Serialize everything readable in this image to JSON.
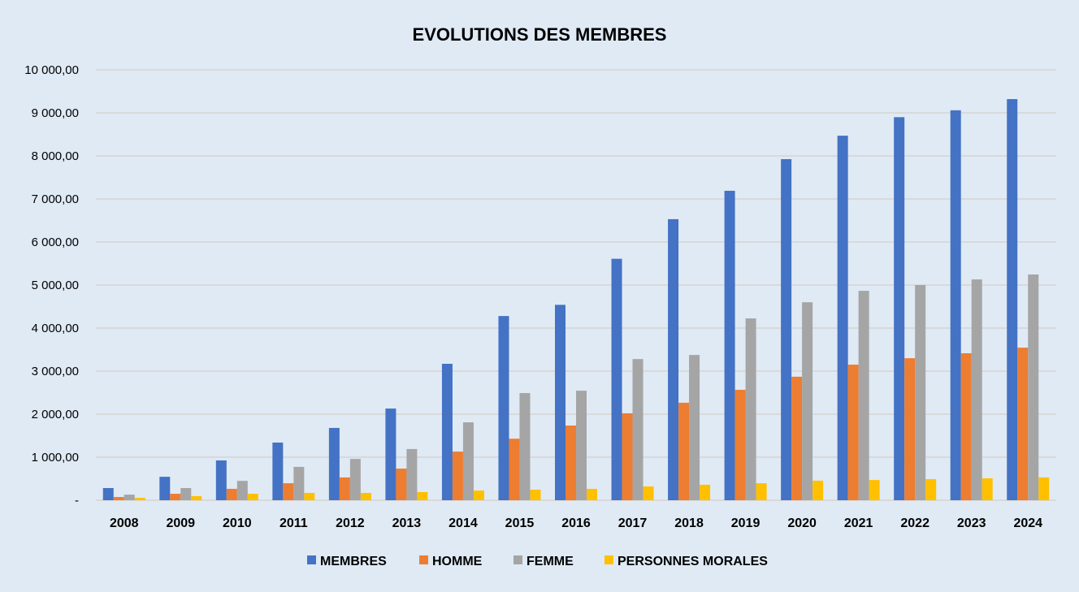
{
  "chart_data": {
    "type": "bar",
    "title": "EVOLUTIONS DES MEMBRES",
    "xlabel": "",
    "ylabel": "",
    "ylim": [
      0,
      10000
    ],
    "yticks": [
      0,
      1000,
      2000,
      3000,
      4000,
      5000,
      6000,
      7000,
      8000,
      9000,
      10000
    ],
    "ytick_labels": [
      "-",
      "1 000,00",
      "2 000,00",
      "3 000,00",
      "4 000,00",
      "5 000,00",
      "6 000,00",
      "7 000,00",
      "8 000,00",
      "9 000,00",
      "10 000,00"
    ],
    "grid": true,
    "legend_position": "bottom",
    "categories": [
      "2008",
      "2009",
      "2010",
      "2011",
      "2012",
      "2013",
      "2014",
      "2015",
      "2016",
      "2017",
      "2018",
      "2019",
      "2020",
      "2021",
      "2022",
      "2023",
      "2024"
    ],
    "series": [
      {
        "name": "MEMBRES",
        "color": "#4472c4",
        "values": [
          283,
          545,
          925,
          1340,
          1680,
          2130,
          3170,
          4280,
          4540,
          5610,
          6530,
          7190,
          7925,
          8470,
          8900,
          9060,
          9320
        ]
      },
      {
        "name": "HOMME",
        "color": "#ed7d31",
        "values": [
          75,
          150,
          265,
          395,
          530,
          735,
          1130,
          1430,
          1735,
          2020,
          2265,
          2565,
          2870,
          3150,
          3300,
          3415,
          3545
        ]
      },
      {
        "name": "FEMME",
        "color": "#a5a5a5",
        "values": [
          130,
          283,
          450,
          775,
          960,
          1190,
          1810,
          2490,
          2545,
          3280,
          3375,
          4225,
          4600,
          4865,
          5000,
          5130,
          5245
        ]
      },
      {
        "name": "PERSONNES MORALES",
        "color": "#ffc000",
        "values": [
          55,
          95,
          150,
          170,
          170,
          190,
          225,
          245,
          265,
          320,
          360,
          395,
          455,
          470,
          490,
          510,
          530
        ]
      }
    ]
  }
}
